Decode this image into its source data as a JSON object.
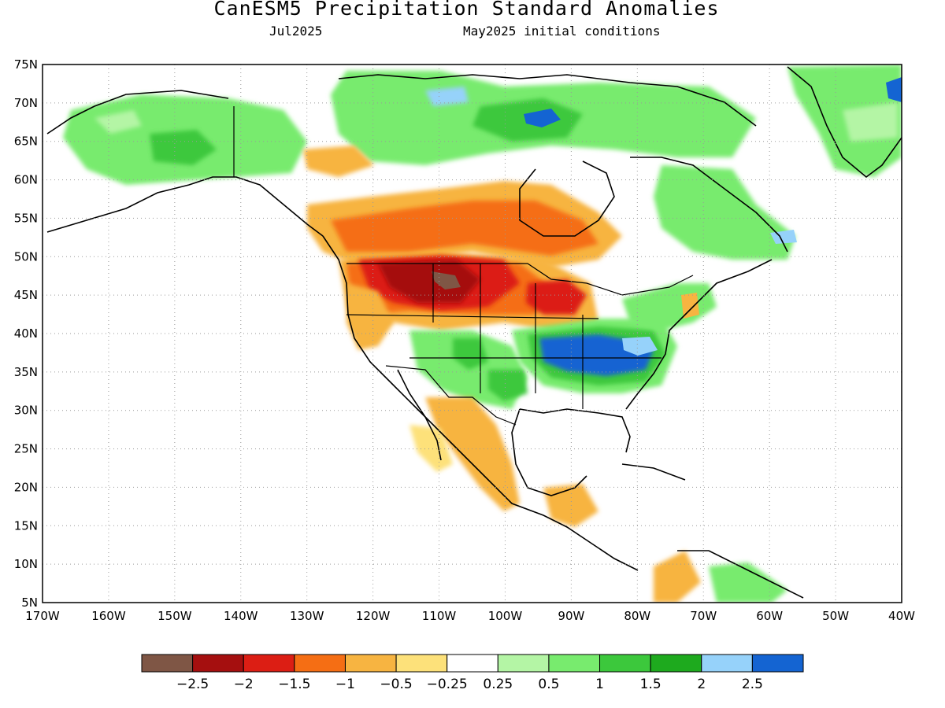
{
  "title": "CanESM5 Precipitation Standard Anomalies",
  "valid_month": "Jul2025",
  "init_label": "May2025 initial conditions",
  "lat_labels": [
    "75N",
    "70N",
    "65N",
    "60N",
    "55N",
    "50N",
    "45N",
    "40N",
    "35N",
    "30N",
    "25N",
    "20N",
    "15N",
    "10N",
    "5N"
  ],
  "lon_labels": [
    "170W",
    "160W",
    "150W",
    "140W",
    "130W",
    "120W",
    "110W",
    "100W",
    "90W",
    "80W",
    "70W",
    "60W",
    "50W",
    "40W"
  ],
  "legend": {
    "colors": [
      "#7f5645",
      "#a50f0f",
      "#dc1e14",
      "#f56e14",
      "#f7b441",
      "#fde17a",
      "#ffffff",
      "#b4f5a5",
      "#78eb6e",
      "#3cc83c",
      "#1eaa1e",
      "#96d2fa",
      "#1464d2"
    ],
    "labels": [
      "-2.5",
      "-2",
      "-1.5",
      "-1",
      "-0.5",
      "-0.25",
      "0.25",
      "0.5",
      "1",
      "1.5",
      "2",
      "2.5"
    ]
  }
}
